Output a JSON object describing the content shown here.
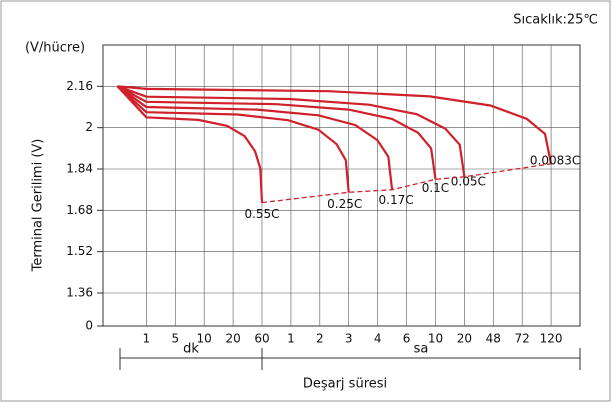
{
  "chart_data": {
    "type": "line",
    "annotation": "Sıcaklık:25℃",
    "y_unit_label": "(V/hücre)",
    "ylabel": "Terminal Gerilimi (V)",
    "xlabel": "Deşarj süresi",
    "ylim": [
      0,
      2.32
    ],
    "yticks": [
      0,
      1.36,
      1.52,
      1.68,
      1.84,
      2.0,
      2.16
    ],
    "y_axis_break": true,
    "xlim": [
      -0.5,
      16
    ],
    "x_groups": [
      {
        "label": "dk",
        "ticks": [
          {
            "value": 1,
            "label": "1"
          },
          {
            "value": 2,
            "label": "5"
          },
          {
            "value": 3,
            "label": "10"
          },
          {
            "value": 4,
            "label": "20"
          },
          {
            "value": 5,
            "label": "60"
          }
        ]
      },
      {
        "label": "sa",
        "ticks": [
          {
            "value": 6,
            "label": "1"
          },
          {
            "value": 7,
            "label": "2"
          },
          {
            "value": 8,
            "label": "3"
          },
          {
            "value": 9,
            "label": "4"
          },
          {
            "value": 10,
            "label": "6"
          },
          {
            "value": 11,
            "label": "10"
          },
          {
            "value": 12,
            "label": "20"
          },
          {
            "value": 13,
            "label": "48"
          },
          {
            "value": 14,
            "label": "72"
          },
          {
            "value": 15,
            "label": "120"
          }
        ]
      }
    ],
    "grid": true,
    "series": [
      {
        "name": "0.55C",
        "color": "#d0202a",
        "x": [
          0,
          1,
          2.8,
          3.8,
          4.4,
          4.76,
          4.94,
          5
        ],
        "values": [
          2.16,
          2.04,
          2.03,
          2.007,
          1.967,
          1.908,
          1.842,
          1.71
        ]
      },
      {
        "name": "0.25C",
        "color": "#d0202a",
        "x": [
          0,
          1,
          4.15,
          5.9,
          6.95,
          7.58,
          7.9,
          8
        ],
        "values": [
          2.16,
          2.06,
          2.051,
          2.029,
          1.992,
          1.936,
          1.874,
          1.75
        ]
      },
      {
        "name": "0.17C",
        "color": "#d0202a",
        "x": [
          0,
          1,
          4.83,
          6.95,
          8.23,
          8.99,
          9.37,
          9.5
        ],
        "values": [
          2.16,
          2.08,
          2.07,
          2.048,
          2.01,
          1.952,
          1.888,
          1.76
        ]
      },
      {
        "name": "0.1C",
        "color": "#d0202a",
        "x": [
          0,
          1,
          5.5,
          8,
          9.5,
          10.4,
          10.85,
          11
        ],
        "values": [
          2.16,
          2.1,
          2.091,
          2.07,
          2.034,
          1.98,
          1.92,
          1.8
        ]
      },
      {
        "name": "0.05C",
        "color": "#d0202a",
        "x": [
          0,
          1,
          5.95,
          8.7,
          10.35,
          11.34,
          11.84,
          12
        ],
        "values": [
          2.16,
          2.12,
          2.111,
          2.089,
          2.052,
          1.996,
          1.934,
          1.81
        ]
      },
      {
        "name": "0.0083C",
        "color": "#d0202a",
        "x": [
          0,
          1,
          7.3,
          10.8,
          12.9,
          14.16,
          14.79,
          15
        ],
        "values": [
          2.16,
          2.15,
          2.141,
          2.121,
          2.086,
          2.034,
          1.976,
          1.86
        ]
      }
    ]
  }
}
